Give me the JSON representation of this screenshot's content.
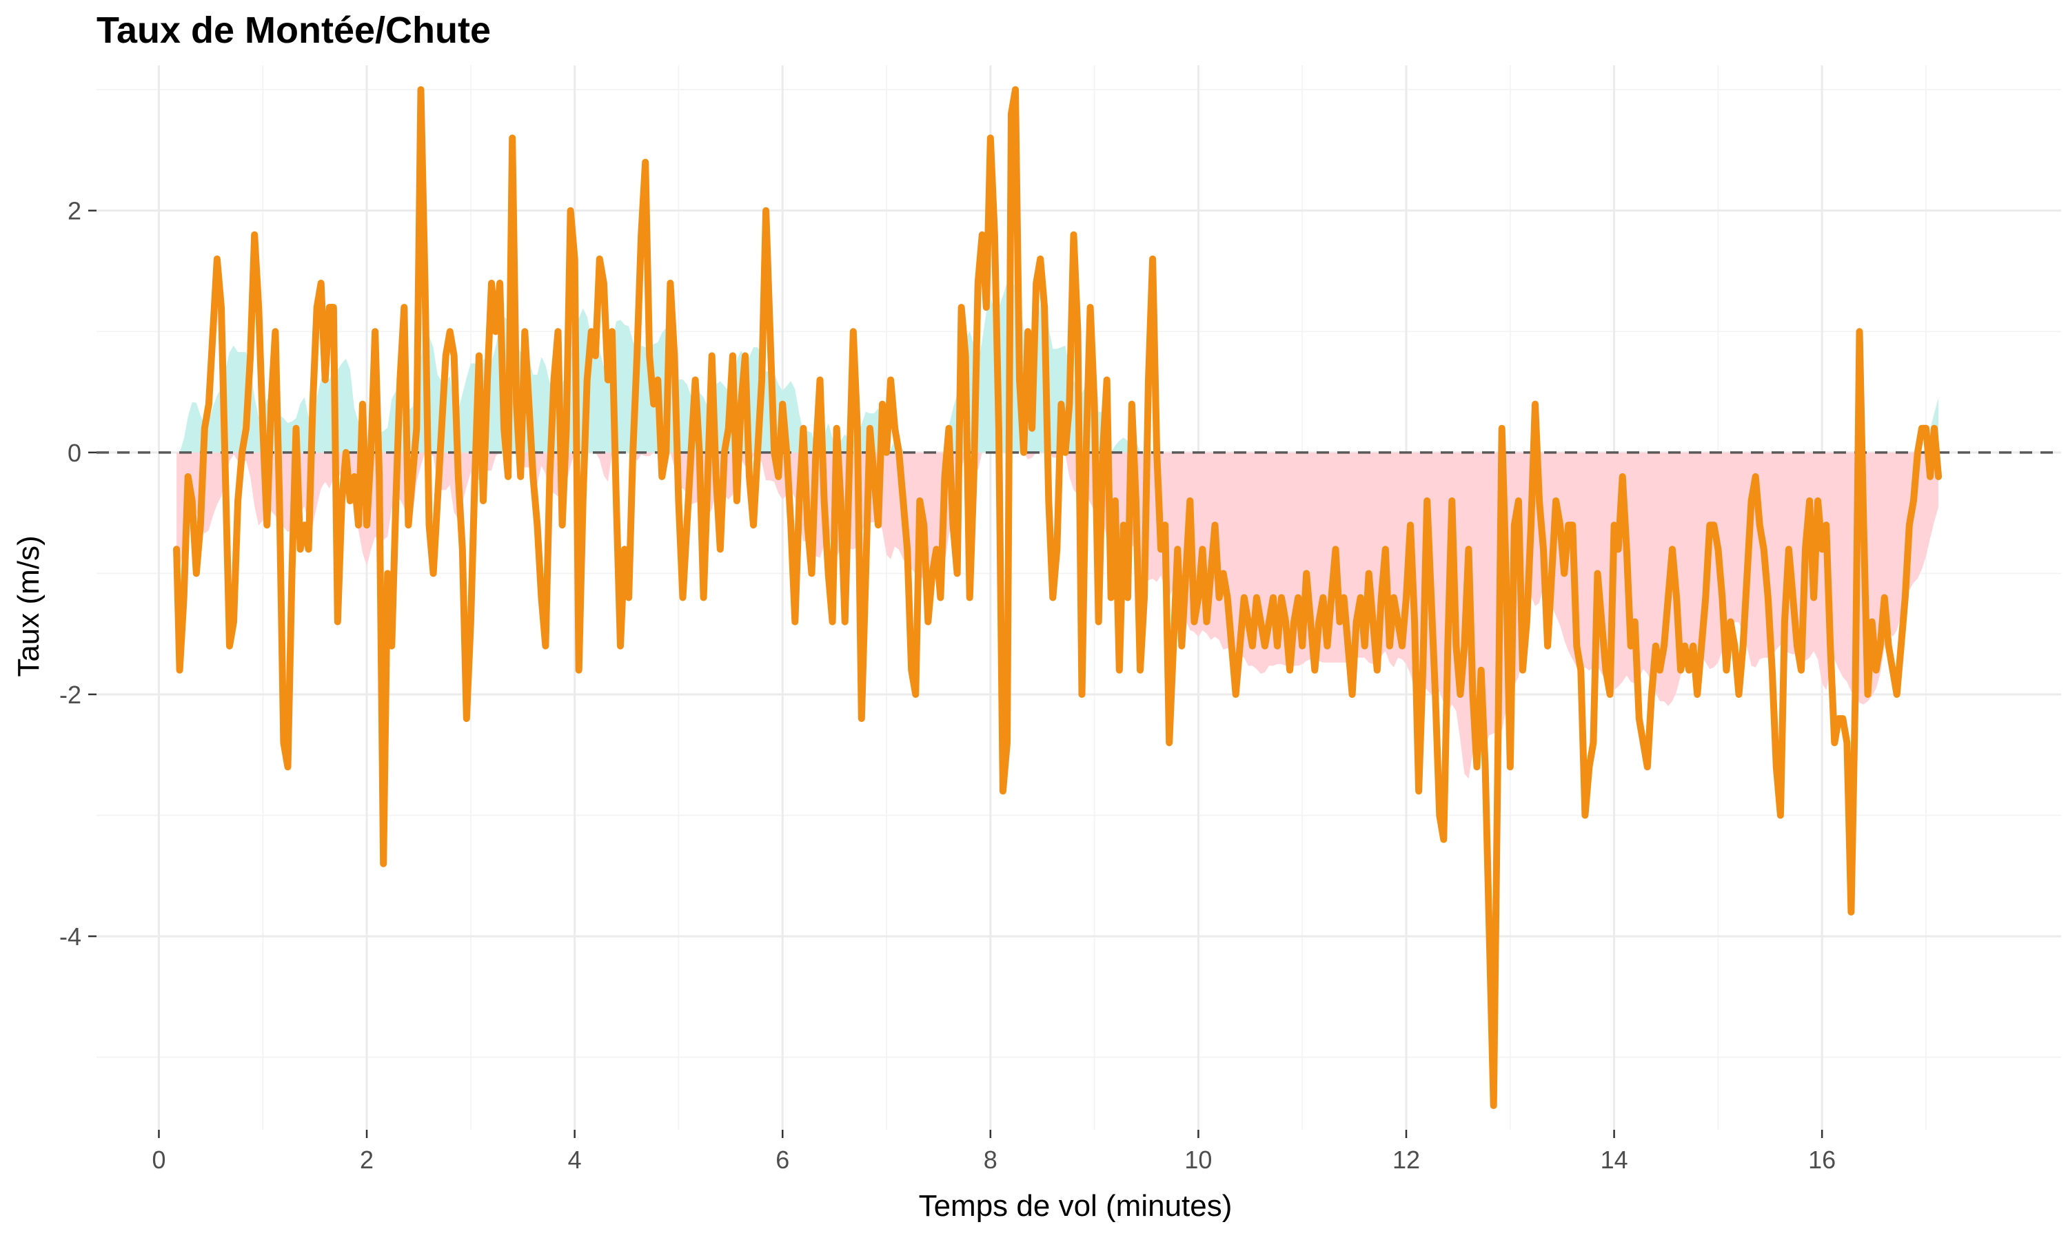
{
  "chart_data": {
    "type": "line",
    "title": "Taux de Montée/Chute",
    "xlabel": "Temps de vol (minutes)",
    "ylabel": "Taux (m/s)",
    "xlim": [
      -0.6,
      18.3
    ],
    "ylim": [
      -5.6,
      3.2
    ],
    "x_ticks": [
      0,
      2,
      4,
      6,
      8,
      10,
      12,
      14,
      16
    ],
    "y_ticks": [
      -4,
      -2,
      0,
      2
    ],
    "grid": true,
    "legend": "none",
    "reference_line": {
      "y": 0,
      "style": "dashed"
    },
    "colors": {
      "line": "#F28E13",
      "positive_fill": "#C6F0EB",
      "negative_fill": "#FFD3D8",
      "reference": "#595959"
    },
    "series": [
      {
        "x": [
          0.17,
          0.2,
          0.24,
          0.28,
          0.32,
          0.36,
          0.4,
          0.44,
          0.48,
          0.52,
          0.56,
          0.6,
          0.64,
          0.68,
          0.72,
          0.76,
          0.8,
          0.84,
          0.88,
          0.92,
          0.96,
          1.0,
          1.04,
          1.08,
          1.12,
          1.16,
          1.2,
          1.24,
          1.28,
          1.32,
          1.36,
          1.4,
          1.44,
          1.48,
          1.52,
          1.56,
          1.6,
          1.64,
          1.68,
          1.72,
          1.76,
          1.8,
          1.84,
          1.88,
          1.92,
          1.96,
          2.0,
          2.04,
          2.08,
          2.12,
          2.16,
          2.2,
          2.24,
          2.28,
          2.32,
          2.36,
          2.4,
          2.44,
          2.48,
          2.52,
          2.56,
          2.6,
          2.64,
          2.68,
          2.72,
          2.76,
          2.8,
          2.84,
          2.88,
          2.92,
          2.96,
          3.0,
          3.04,
          3.08,
          3.12,
          3.16,
          3.2,
          3.24,
          3.28,
          3.32,
          3.36,
          3.4,
          3.44,
          3.48,
          3.52,
          3.56,
          3.6,
          3.64,
          3.68,
          3.72,
          3.76,
          3.8,
          3.84,
          3.88,
          3.92,
          3.96,
          4.0,
          4.04,
          4.08,
          4.12,
          4.16,
          4.2,
          4.24,
          4.28,
          4.32,
          4.36,
          4.4,
          4.44,
          4.48,
          4.52,
          4.56,
          4.6,
          4.64,
          4.68,
          4.72,
          4.76,
          4.8,
          4.84,
          4.88,
          4.92,
          4.96,
          5.0,
          5.04,
          5.08,
          5.12,
          5.16,
          5.2,
          5.24,
          5.28,
          5.32,
          5.36,
          5.4,
          5.44,
          5.48,
          5.52,
          5.56,
          5.6,
          5.64,
          5.68,
          5.72,
          5.76,
          5.8,
          5.84,
          5.88,
          5.92,
          5.96,
          6.0,
          6.04,
          6.08,
          6.12,
          6.16,
          6.2,
          6.24,
          6.28,
          6.32,
          6.36,
          6.4,
          6.44,
          6.48,
          6.52,
          6.56,
          6.6,
          6.64,
          6.68,
          6.72,
          6.76,
          6.8,
          6.84,
          6.88,
          6.92,
          6.96,
          7.0,
          7.04,
          7.08,
          7.12,
          7.16,
          7.2,
          7.24,
          7.28,
          7.32,
          7.36,
          7.4,
          7.44,
          7.48,
          7.52,
          7.56,
          7.6,
          7.64,
          7.68,
          7.72,
          7.76,
          7.8,
          7.84,
          7.88,
          7.92,
          7.96,
          8.0,
          8.04,
          8.08,
          8.12,
          8.16,
          8.2,
          8.24,
          8.28,
          8.32,
          8.36,
          8.4,
          8.44,
          8.48,
          8.52,
          8.56,
          8.6,
          8.64,
          8.68,
          8.72,
          8.76,
          8.8,
          8.84,
          8.88,
          8.92,
          8.96,
          9.0,
          9.04,
          9.08,
          9.12,
          9.16,
          9.2,
          9.24,
          9.28,
          9.32,
          9.36,
          9.4,
          9.44,
          9.48,
          9.52,
          9.56,
          9.6,
          9.64,
          9.68,
          9.72,
          9.76,
          9.8,
          9.84,
          9.88,
          9.92,
          9.96,
          10.0,
          10.04,
          10.08,
          10.12,
          10.16,
          10.2,
          10.24,
          10.28,
          10.32,
          10.36,
          10.4,
          10.44,
          10.48,
          10.52,
          10.56,
          10.6,
          10.64,
          10.68,
          10.72,
          10.76,
          10.8,
          10.84,
          10.88,
          10.92,
          10.96,
          11.0,
          11.04,
          11.08,
          11.12,
          11.16,
          11.2,
          11.24,
          11.28,
          11.32,
          11.36,
          11.4,
          11.44,
          11.48,
          11.52,
          11.56,
          11.6,
          11.64,
          11.68,
          11.72,
          11.76,
          11.8,
          11.84,
          11.88,
          11.92,
          11.96,
          12.0,
          12.04,
          12.08,
          12.12,
          12.16,
          12.2,
          12.24,
          12.28,
          12.32,
          12.36,
          12.4,
          12.44,
          12.48,
          12.52,
          12.56,
          12.6,
          12.64,
          12.68,
          12.72,
          12.76,
          12.8,
          12.84,
          12.88,
          12.92,
          12.96,
          13.0,
          13.04,
          13.08,
          13.12,
          13.16,
          13.2,
          13.24,
          13.28,
          13.32,
          13.36,
          13.4,
          13.44,
          13.48,
          13.52,
          13.56,
          13.6,
          13.64,
          13.68,
          13.72,
          13.76,
          13.8,
          13.84,
          13.88,
          13.92,
          13.96,
          14.0,
          14.04,
          14.08,
          14.12,
          14.16,
          14.2,
          14.24,
          14.28,
          14.32,
          14.36,
          14.4,
          14.44,
          14.48,
          14.52,
          14.56,
          14.6,
          14.64,
          14.68,
          14.72,
          14.76,
          14.8,
          14.84,
          14.88,
          14.92,
          14.96,
          15.0,
          15.04,
          15.08,
          15.12,
          15.16,
          15.2,
          15.24,
          15.28,
          15.32,
          15.36,
          15.4,
          15.44,
          15.48,
          15.52,
          15.56,
          15.6,
          15.64,
          15.68,
          15.72,
          15.76,
          15.8,
          15.84,
          15.88,
          15.92,
          15.96,
          16.0,
          16.04,
          16.08,
          16.12,
          16.16,
          16.2,
          16.24,
          16.28,
          16.32,
          16.36,
          16.4,
          16.44,
          16.48,
          16.52,
          16.56,
          16.6,
          16.64,
          16.68,
          16.72,
          16.76,
          16.8,
          16.84,
          16.88,
          16.92,
          16.96,
          17.0,
          17.04,
          17.08,
          17.12
        ],
        "y": [
          -0.8,
          -1.8,
          -1.2,
          -0.2,
          -0.4,
          -1.0,
          -0.6,
          0.2,
          0.4,
          1.0,
          1.6,
          1.2,
          -0.2,
          -1.6,
          -1.4,
          -0.4,
          0.0,
          0.2,
          0.8,
          1.8,
          1.2,
          0.2,
          -0.6,
          0.4,
          1.0,
          -0.4,
          -2.4,
          -2.6,
          -1.0,
          0.2,
          -0.8,
          -0.6,
          -0.8,
          0.4,
          1.2,
          1.4,
          0.6,
          1.2,
          1.2,
          -1.4,
          -0.4,
          0.0,
          -0.4,
          -0.2,
          -0.6,
          0.4,
          -0.6,
          0.0,
          1.0,
          -0.2,
          -3.4,
          -1.0,
          -1.6,
          -0.4,
          0.6,
          1.2,
          -0.6,
          -0.2,
          0.2,
          3.0,
          1.4,
          -0.6,
          -1.0,
          -0.4,
          0.2,
          0.8,
          1.0,
          0.8,
          -0.2,
          -0.8,
          -2.2,
          -1.4,
          -0.2,
          0.8,
          -0.4,
          0.6,
          1.4,
          1.0,
          1.4,
          0.2,
          -0.2,
          2.6,
          0.4,
          -0.2,
          1.0,
          0.4,
          -0.2,
          -0.6,
          -1.2,
          -1.6,
          -0.2,
          0.6,
          1.0,
          -0.6,
          0.2,
          2.0,
          1.6,
          -1.8,
          -0.4,
          0.6,
          1.0,
          0.8,
          1.6,
          1.4,
          0.6,
          1.0,
          -0.4,
          -1.6,
          -0.8,
          -1.2,
          0.0,
          0.8,
          1.8,
          2.4,
          0.8,
          0.4,
          0.6,
          -0.2,
          0.0,
          1.4,
          0.8,
          -0.4,
          -1.2,
          -0.6,
          0.0,
          0.6,
          0.0,
          -1.2,
          -0.2,
          0.8,
          -0.2,
          -0.8,
          0.0,
          0.2,
          0.8,
          -0.4,
          0.4,
          0.8,
          -0.2,
          -0.6,
          0.0,
          0.6,
          2.0,
          1.0,
          0.0,
          -0.2,
          0.4,
          0.0,
          -0.6,
          -1.4,
          -0.4,
          0.2,
          -0.6,
          -1.0,
          0.0,
          0.6,
          -0.4,
          -1.0,
          -1.4,
          0.2,
          -0.4,
          -1.4,
          -0.2,
          1.0,
          0.2,
          -2.2,
          -1.0,
          0.2,
          -0.2,
          -0.6,
          0.4,
          0.0,
          0.6,
          0.2,
          0.0,
          -0.4,
          -0.8,
          -1.8,
          -2.0,
          -0.4,
          -0.6,
          -1.4,
          -1.0,
          -0.8,
          -1.2,
          -0.2,
          0.2,
          -0.6,
          -1.0,
          1.2,
          0.8,
          -1.2,
          -0.2,
          1.4,
          1.8,
          1.2,
          2.6,
          1.8,
          0.2,
          -2.8,
          -2.4,
          2.8,
          3.0,
          0.6,
          0.0,
          1.0,
          0.2,
          1.4,
          1.6,
          1.2,
          -0.4,
          -1.2,
          -0.8,
          0.4,
          0.0,
          0.4,
          1.8,
          1.0,
          -2.0,
          0.0,
          1.2,
          0.4,
          -1.4,
          0.0,
          0.6,
          -1.2,
          -0.4,
          -1.8,
          -0.6,
          -1.2,
          0.4,
          -0.4,
          -1.8,
          -1.2,
          0.6,
          1.6,
          0.0,
          -0.8,
          -0.6,
          -2.4,
          -1.6,
          -0.8,
          -1.6,
          -1.0,
          -0.4,
          -1.4,
          -1.2,
          -0.8,
          -1.4,
          -1.0,
          -0.6,
          -1.2,
          -1.0,
          -1.2,
          -1.6,
          -2.0,
          -1.6,
          -1.2,
          -1.4,
          -1.6,
          -1.2,
          -1.4,
          -1.6,
          -1.4,
          -1.2,
          -1.6,
          -1.2,
          -1.4,
          -1.8,
          -1.4,
          -1.2,
          -1.6,
          -1.0,
          -1.4,
          -1.8,
          -1.4,
          -1.2,
          -1.6,
          -1.2,
          -0.8,
          -1.4,
          -1.2,
          -1.6,
          -2.0,
          -1.4,
          -1.2,
          -1.6,
          -1.0,
          -1.4,
          -1.8,
          -1.2,
          -0.8,
          -1.6,
          -1.2,
          -1.4,
          -1.6,
          -1.2,
          -0.6,
          -1.4,
          -2.8,
          -1.8,
          -0.4,
          -1.2,
          -2.0,
          -3.0,
          -3.2,
          -1.6,
          -0.4,
          -1.6,
          -2.0,
          -1.6,
          -0.8,
          -2.0,
          -2.6,
          -1.8,
          -2.6,
          -4.0,
          -5.4,
          -2.6,
          0.2,
          -1.0,
          -2.6,
          -0.6,
          -0.4,
          -1.8,
          -1.4,
          -0.6,
          0.4,
          -0.4,
          -0.8,
          -1.6,
          -1.0,
          -0.4,
          -0.6,
          -1.0,
          -0.6,
          -0.6,
          -1.6,
          -1.8,
          -3.0,
          -2.6,
          -2.4,
          -1.0,
          -1.4,
          -1.8,
          -2.0,
          -0.6,
          -0.8,
          -0.2,
          -0.8,
          -1.6,
          -1.4,
          -2.2,
          -2.4,
          -2.6,
          -2.0,
          -1.6,
          -1.8,
          -1.6,
          -1.2,
          -0.8,
          -1.2,
          -1.8,
          -1.6,
          -1.8,
          -1.6,
          -2.0,
          -1.6,
          -1.2,
          -0.6,
          -0.6,
          -0.8,
          -1.2,
          -1.8,
          -1.4,
          -1.6,
          -2.0,
          -1.6,
          -1.0,
          -0.4,
          -0.2,
          -0.6,
          -0.8,
          -1.2,
          -1.8,
          -2.6,
          -3.0,
          -1.4,
          -0.8,
          -1.2,
          -1.6,
          -1.8,
          -0.8,
          -0.4,
          -1.2,
          -0.4,
          -0.8,
          -0.6,
          -1.6,
          -2.4,
          -2.2,
          -2.2,
          -2.4,
          -3.8,
          -2.0,
          1.0,
          -0.6,
          -2.0,
          -1.4,
          -1.8,
          -1.6,
          -1.2,
          -1.6,
          -1.8,
          -2.0,
          -1.6,
          -1.2,
          -0.6,
          -0.4,
          0.0,
          0.2,
          0.2,
          -0.2,
          0.2,
          -0.2
        ]
      }
    ]
  }
}
